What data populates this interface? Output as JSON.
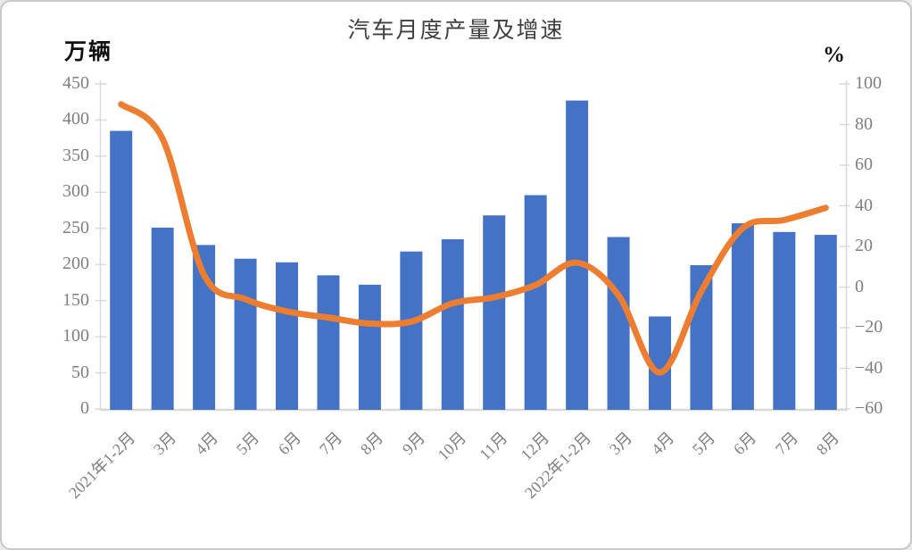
{
  "chart": {
    "colors": {
      "bar": "#4472C4",
      "line": "#ED7D31",
      "axis": "#D9D9D9",
      "tick_text": "#7F7F7F",
      "title_text": "#3F3F3F"
    }
  },
  "chart_data": {
    "type": "bar+line",
    "title": "汽车月度产量及增速",
    "categories": [
      "2021年1-2月",
      "3月",
      "4月",
      "5月",
      "6月",
      "7月",
      "8月",
      "9月",
      "10月",
      "11月",
      "12月",
      "2022年1-2月",
      "3月",
      "4月",
      "5月",
      "6月",
      "7月",
      "8月"
    ],
    "series": [
      {
        "id": "production-bars",
        "type": "bar",
        "axis": "left",
        "color": "#4472C4",
        "values": [
          385,
          251,
          227,
          208,
          203,
          185,
          172,
          218,
          235,
          268,
          296,
          427,
          238,
          128,
          199,
          257,
          245,
          241
        ]
      },
      {
        "id": "growth-line",
        "type": "line",
        "axis": "right",
        "color": "#ED7D31",
        "values": [
          90,
          73,
          6,
          -6,
          -12,
          -15,
          -18,
          -17,
          -8,
          -5,
          1,
          12,
          -4,
          -42,
          -2,
          29,
          33,
          39
        ]
      }
    ],
    "left_axis": {
      "unit": "万辆",
      "min": 0,
      "max": 450,
      "step": 50,
      "ticks": [
        "450",
        "400",
        "350",
        "300",
        "250",
        "200",
        "150",
        "100",
        "50",
        "0"
      ]
    },
    "right_axis": {
      "unit": "%",
      "min": -60,
      "max": 100,
      "step": 20,
      "ticks": [
        "100",
        "80",
        "60",
        "40",
        "20",
        "0",
        "−20",
        "−40",
        "−60"
      ]
    },
    "grid": false,
    "legend": "none"
  }
}
